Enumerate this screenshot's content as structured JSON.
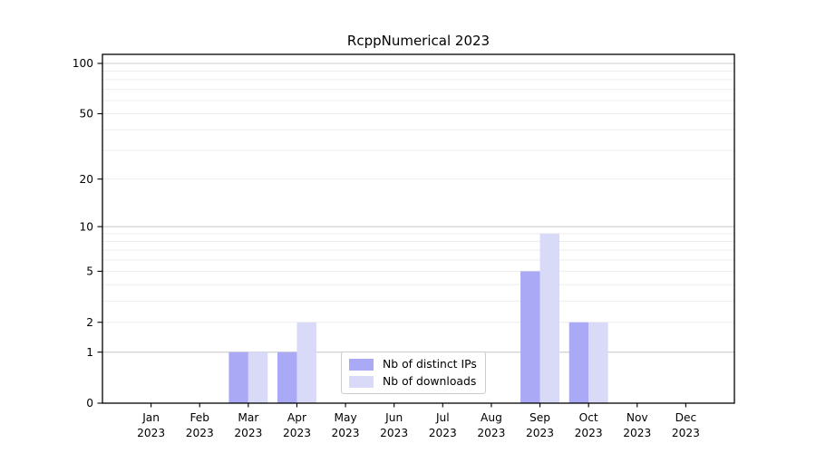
{
  "title": "RcppNumerical 2023",
  "chart_data": {
    "type": "bar",
    "categories": [
      {
        "month": "Jan",
        "year": "2023"
      },
      {
        "month": "Feb",
        "year": "2023"
      },
      {
        "month": "Mar",
        "year": "2023"
      },
      {
        "month": "Apr",
        "year": "2023"
      },
      {
        "month": "May",
        "year": "2023"
      },
      {
        "month": "Jun",
        "year": "2023"
      },
      {
        "month": "Jul",
        "year": "2023"
      },
      {
        "month": "Aug",
        "year": "2023"
      },
      {
        "month": "Sep",
        "year": "2023"
      },
      {
        "month": "Oct",
        "year": "2023"
      },
      {
        "month": "Nov",
        "year": "2023"
      },
      {
        "month": "Dec",
        "year": "2023"
      }
    ],
    "series": [
      {
        "name": "Nb of distinct IPs",
        "color": "#a9a9f6",
        "values": [
          0,
          0,
          1,
          1,
          0,
          0,
          0,
          0,
          5,
          2,
          0,
          0
        ]
      },
      {
        "name": "Nb of downloads",
        "color": "#d9d9f8",
        "values": [
          0,
          0,
          1,
          2,
          0,
          0,
          0,
          0,
          9,
          2,
          0,
          0
        ]
      }
    ],
    "yscale": "log1p",
    "ylim": [
      0,
      113
    ],
    "yticks": [
      0,
      1,
      2,
      5,
      10,
      20,
      50,
      100
    ],
    "grid_major": [
      1,
      10,
      100
    ],
    "grid_minor": [
      2,
      3,
      4,
      5,
      6,
      7,
      8,
      9,
      20,
      30,
      40,
      50,
      60,
      70,
      80,
      90
    ],
    "legend_position": "lower center",
    "grid": true
  },
  "colors": {
    "background": "#ffffff",
    "axis": "#000000",
    "grid_major": "#cccccc",
    "grid_minor": "#ededed",
    "tick_label": "#000000",
    "legend_border": "#cccccc"
  }
}
